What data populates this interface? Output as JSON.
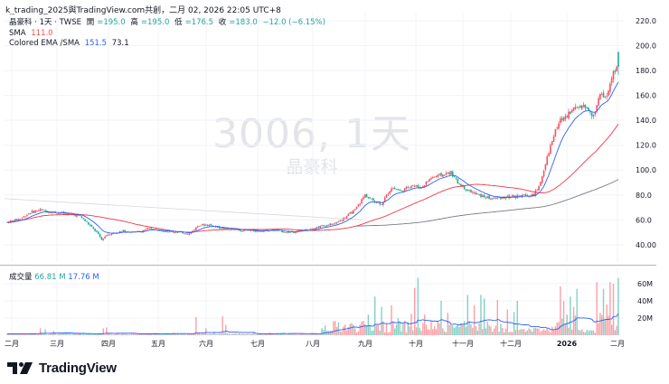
{
  "caption": "k_trading_2025與TradingView.com共創，二月 02, 2026 22:05 UTC+8",
  "legend": {
    "symbol": "晶豪科 · 1天 · TWSE",
    "open_label": "開",
    "open": "=195.0",
    "high_label": "高",
    "high": "=195.0",
    "low_label": "低",
    "low": "=176.5",
    "close_label": "收",
    "close": "=183.0",
    "change": "−12.0 (−6.15%)",
    "sma_label": "SMA",
    "sma_value": "111.0",
    "ema_label": "Colored EMA /SMA",
    "ema_value": "151.5",
    "sma2_value": "73.1"
  },
  "watermark": {
    "main": "3006, 1天",
    "sub": "晶豪科"
  },
  "volume_legend": {
    "label": "成交量",
    "value": "66.81 M",
    "ma_value": "17.76 M"
  },
  "logo": {
    "text": "TradingView"
  },
  "colors": {
    "up": "#f7525f",
    "down": "#22ab94",
    "ema": "#2962ff",
    "sma": "#f23645",
    "sma_long": "#787b86",
    "grid": "#f0f3fa"
  },
  "chart_data": [
    {
      "type": "candlestick",
      "title": "3006, 1天 — 晶豪科 (TWSE)",
      "xlabel": "",
      "ylabel": "",
      "x_ticks": [
        "二月",
        "三月",
        "四月",
        "五月",
        "六月",
        "七月",
        "八月",
        "九月",
        "十月",
        "十一月",
        "十二月",
        "2026",
        "二月"
      ],
      "y_ticks": [
        "220.0",
        "200.0",
        "180.0",
        "160.0",
        "140.0",
        "120.0",
        "100.0",
        "80.0",
        "60.0",
        "40.00"
      ],
      "ylim": [
        35,
        225
      ],
      "grid": true,
      "approx_monthly_close": {
        "x": [
          "二月",
          "三月",
          "四月",
          "五月",
          "六月",
          "七月",
          "八月",
          "九月",
          "十月",
          "十一月",
          "十二月",
          "2026",
          "二月"
        ],
        "values": [
          59,
          67,
          48,
          52,
          55,
          52,
          51,
          57,
          86,
          95,
          80,
          110,
          183
        ]
      },
      "series": [
        {
          "name": "Colored EMA",
          "last": 151.5,
          "color": "#2962ff"
        },
        {
          "name": "SMA",
          "last": 111.0,
          "color": "#f23645"
        },
        {
          "name": "SMA (long)",
          "last": 73.1,
          "color": "#787b86"
        }
      ],
      "last_bar": {
        "open": 195.0,
        "high": 195.0,
        "low": 176.5,
        "close": 183.0,
        "change": -12.0,
        "change_pct": -6.15
      }
    },
    {
      "type": "bar",
      "title": "成交量",
      "y_ticks": [
        "60M",
        "40M",
        "20M"
      ],
      "ylim": [
        0,
        70
      ],
      "unit": "M",
      "approx_peaks": {
        "x": [
          "六月",
          "七月",
          "十月",
          "十月",
          "十一月",
          "2026",
          "2026",
          "二月"
        ],
        "values": [
          21,
          22,
          45,
          67,
          47,
          57,
          54,
          66.81
        ]
      },
      "series": [
        {
          "name": "Volume",
          "last": 66.81
        },
        {
          "name": "Volume MA",
          "last": 17.76,
          "color": "#2962ff"
        }
      ]
    }
  ]
}
